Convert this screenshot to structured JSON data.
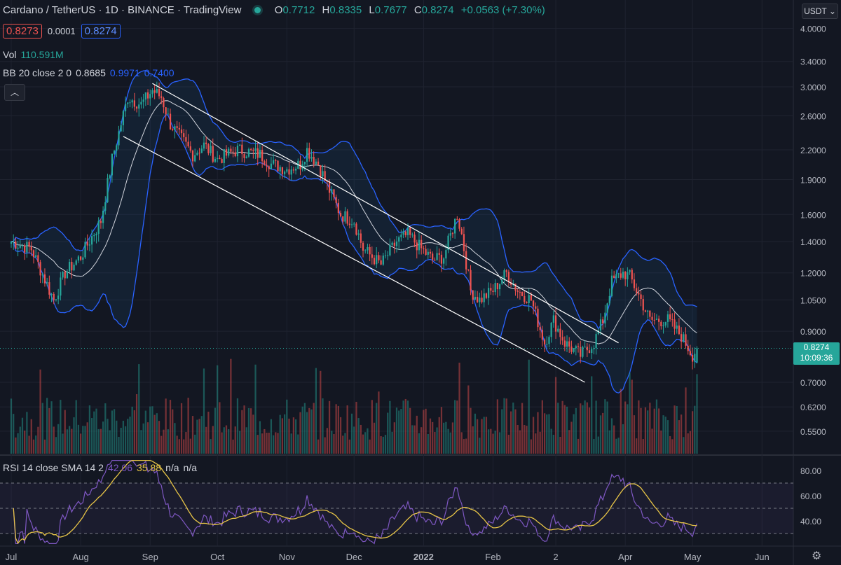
{
  "header": {
    "title": "Cardano / TetherUS · 1D · BINANCE · TradingView",
    "ohlc": {
      "o_label": "O",
      "o": "0.7712",
      "h_label": "H",
      "h": "0.8335",
      "l_label": "L",
      "l": "0.7677",
      "c_label": "C",
      "c": "0.8274",
      "change": "+0.0563 (+7.30%)"
    },
    "bid": "0.8273",
    "spread": "0.0001",
    "ask": "0.8274",
    "currency": "USDT ⌄"
  },
  "volume": {
    "label": "Vol",
    "value": "110.591M"
  },
  "bb": {
    "label": "BB 20 close 2 0",
    "mid": "0.8685",
    "upper": "0.9971",
    "lower": "0.7400"
  },
  "rsi": {
    "label": "RSI 14 close SMA 14 2",
    "rsi": "42.06",
    "sma": "35.88",
    "na1": "n/a",
    "na2": "n/a"
  },
  "price_tag": {
    "price": "0.8274",
    "countdown": "10:09:36"
  },
  "colors": {
    "up": "#26a69a",
    "down": "#ef5350",
    "bb": "#2962ff",
    "rsi": "#7e57c2",
    "rsi_sma": "#e8c547",
    "bg": "#131722"
  },
  "chart_data": {
    "type": "candlestick",
    "scale": "log",
    "price_ticks": [
      "4.0000",
      "3.4000",
      "3.0000",
      "2.6000",
      "2.2000",
      "1.9000",
      "1.6000",
      "1.4000",
      "1.2000",
      "1.0500",
      "0.9000",
      "0.7000",
      "0.6200",
      "0.5500"
    ],
    "rsi_ticks": [
      "80.00",
      "60.00",
      "40.00"
    ],
    "rsi_bands": [
      70,
      50,
      30
    ],
    "x_labels": [
      "Jul",
      "Aug",
      "Sep",
      "Oct",
      "Nov",
      "Dec",
      "2022",
      "Feb",
      "2",
      "Apr",
      "May",
      "Jun"
    ],
    "ylim": [
      0.5,
      4.6
    ],
    "anchors": [
      [
        "2021-07-01",
        1.4
      ],
      [
        "2021-07-10",
        1.35
      ],
      [
        "2021-07-20",
        1.05
      ],
      [
        "2021-07-25",
        1.2
      ],
      [
        "2021-08-01",
        1.3
      ],
      [
        "2021-08-10",
        1.55
      ],
      [
        "2021-08-15",
        2.1
      ],
      [
        "2021-08-22",
        2.85
      ],
      [
        "2021-08-28",
        2.75
      ],
      [
        "2021-09-02",
        2.95
      ],
      [
        "2021-09-06",
        2.85
      ],
      [
        "2021-09-10",
        2.5
      ],
      [
        "2021-09-20",
        2.15
      ],
      [
        "2021-09-25",
        2.25
      ],
      [
        "2021-10-01",
        2.1
      ],
      [
        "2021-10-10",
        2.2
      ],
      [
        "2021-10-20",
        2.15
      ],
      [
        "2021-10-25",
        2.05
      ],
      [
        "2021-11-01",
        2.0
      ],
      [
        "2021-11-07",
        2.05
      ],
      [
        "2021-11-10",
        2.2
      ],
      [
        "2021-11-15",
        2.05
      ],
      [
        "2021-11-20",
        1.8
      ],
      [
        "2021-11-25",
        1.6
      ],
      [
        "2021-12-01",
        1.55
      ],
      [
        "2021-12-05",
        1.35
      ],
      [
        "2021-12-13",
        1.25
      ],
      [
        "2021-12-20",
        1.4
      ],
      [
        "2021-12-25",
        1.45
      ],
      [
        "2021-12-31",
        1.35
      ],
      [
        "2022-01-05",
        1.28
      ],
      [
        "2022-01-10",
        1.3
      ],
      [
        "2022-01-16",
        1.6
      ],
      [
        "2022-01-18",
        1.45
      ],
      [
        "2022-01-22",
        1.1
      ],
      [
        "2022-01-26",
        1.05
      ],
      [
        "2022-02-01",
        1.1
      ],
      [
        "2022-02-07",
        1.2
      ],
      [
        "2022-02-12",
        1.1
      ],
      [
        "2022-02-18",
        1.05
      ],
      [
        "2022-02-24",
        0.85
      ],
      [
        "2022-02-28",
        0.95
      ],
      [
        "2022-03-05",
        0.85
      ],
      [
        "2022-03-12",
        0.8
      ],
      [
        "2022-03-18",
        0.85
      ],
      [
        "2022-03-22",
        0.95
      ],
      [
        "2022-03-26",
        1.15
      ],
      [
        "2022-03-31",
        1.2
      ],
      [
        "2022-04-03",
        1.18
      ],
      [
        "2022-04-08",
        1.05
      ],
      [
        "2022-04-12",
        0.95
      ],
      [
        "2022-04-20",
        0.95
      ],
      [
        "2022-04-26",
        0.88
      ],
      [
        "2022-05-01",
        0.8
      ],
      [
        "2022-05-03",
        0.8274
      ]
    ],
    "volume_unit": "USDT",
    "channel": [
      {
        "from": [
          "2021-09-02",
          3.05
        ],
        "to": [
          "2022-03-29",
          0.85
        ]
      },
      {
        "from": [
          "2021-08-20",
          2.35
        ],
        "to": [
          "2022-03-14",
          0.7
        ]
      }
    ]
  }
}
